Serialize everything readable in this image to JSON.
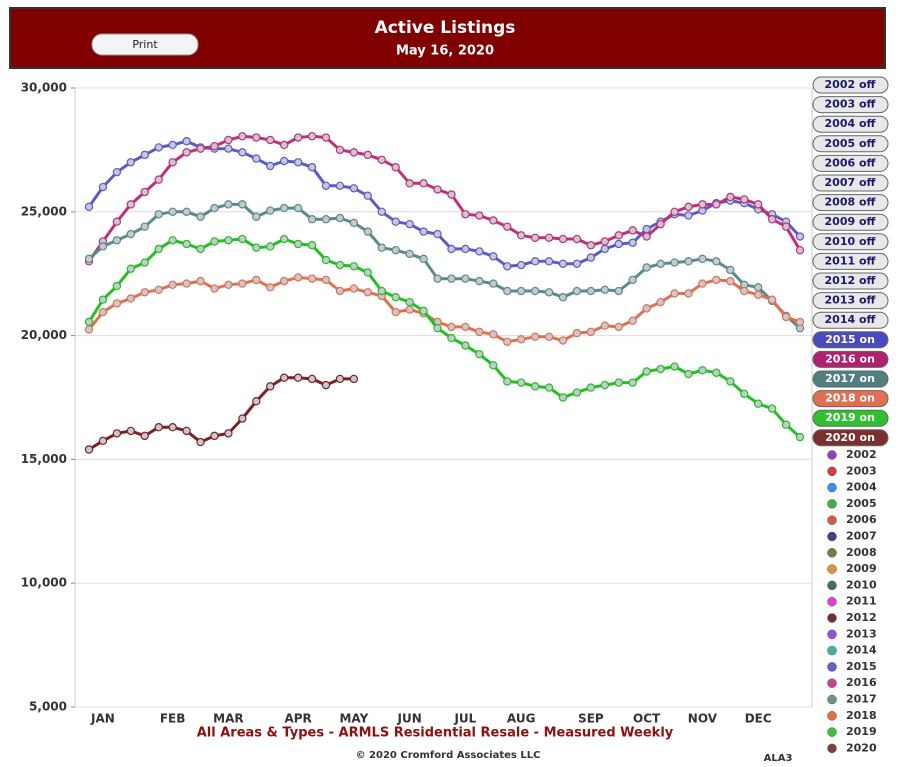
{
  "print_button": "Print",
  "chart_data": {
    "type": "line",
    "title": "Active Listings",
    "subtitle": "May 16, 2020",
    "caption": "All Areas & Types - ARMLS Residential Resale - Measured Weekly",
    "copyright": "© 2020 Cromford Associates LLC",
    "code": "ALA3",
    "grid": true,
    "ylim": [
      5000,
      30000
    ],
    "yticks": [
      {
        "value": 5000,
        "label": "5,000"
      },
      {
        "value": 10000,
        "label": "10,000"
      },
      {
        "value": 15000,
        "label": "15,000"
      },
      {
        "value": 20000,
        "label": "20,000"
      },
      {
        "value": 25000,
        "label": "25,000"
      },
      {
        "value": 30000,
        "label": "30,000"
      }
    ],
    "categories": [
      null,
      "JAN",
      null,
      null,
      null,
      null,
      "FEB",
      null,
      null,
      null,
      "MAR",
      null,
      null,
      null,
      null,
      "APR",
      null,
      null,
      null,
      "MAY",
      null,
      null,
      null,
      "JUN",
      null,
      null,
      null,
      "JUL",
      null,
      null,
      null,
      "AUG",
      null,
      null,
      null,
      null,
      "SEP",
      null,
      null,
      null,
      "OCT",
      null,
      null,
      null,
      "NOV",
      null,
      null,
      null,
      "DEC",
      null,
      null,
      null
    ],
    "series": [
      {
        "name": "2015",
        "color": "#5b5bc8",
        "values": [
          25200,
          26000,
          26600,
          27000,
          27300,
          27600,
          27700,
          27850,
          27600,
          27550,
          27550,
          27400,
          27150,
          26850,
          27050,
          27000,
          26800,
          26050,
          26050,
          25950,
          25650,
          25000,
          24600,
          24500,
          24200,
          24100,
          23500,
          23500,
          23400,
          23200,
          22800,
          22850,
          23000,
          23000,
          22900,
          22900,
          23150,
          23500,
          23700,
          23750,
          24300,
          24600,
          24900,
          24850,
          25050,
          25350,
          25450,
          25350,
          25100,
          24900,
          24600,
          24000
        ]
      },
      {
        "name": "2016",
        "color": "#c0307a",
        "values": [
          23000,
          23800,
          24600,
          25300,
          25800,
          26300,
          27000,
          27400,
          27550,
          27650,
          27900,
          28050,
          28000,
          27900,
          27700,
          28000,
          28050,
          28000,
          27500,
          27400,
          27300,
          27100,
          26800,
          26150,
          26150,
          25900,
          25700,
          24900,
          24850,
          24650,
          24400,
          24050,
          23950,
          23950,
          23900,
          23900,
          23650,
          23800,
          24050,
          24250,
          24000,
          24500,
          25000,
          25200,
          25300,
          25300,
          25600,
          25500,
          25300,
          24700,
          24400,
          23450
        ]
      },
      {
        "name": "2017",
        "color": "#5a8a8a",
        "values": [
          23100,
          23600,
          23850,
          24100,
          24400,
          24900,
          25000,
          25000,
          24800,
          25150,
          25300,
          25300,
          24800,
          25050,
          25150,
          25150,
          24700,
          24700,
          24750,
          24550,
          24200,
          23550,
          23450,
          23300,
          23100,
          22300,
          22300,
          22300,
          22200,
          22100,
          21800,
          21800,
          21800,
          21750,
          21550,
          21800,
          21800,
          21850,
          21800,
          22250,
          22750,
          22900,
          22950,
          23000,
          23100,
          23000,
          22650,
          22050,
          21950,
          21400,
          20800,
          20300
        ]
      },
      {
        "name": "2018",
        "color": "#e07050",
        "values": [
          20250,
          20950,
          21300,
          21500,
          21750,
          21850,
          22050,
          22100,
          22200,
          21900,
          22050,
          22100,
          22250,
          21950,
          22200,
          22350,
          22300,
          22250,
          21800,
          21900,
          21750,
          21600,
          20950,
          21050,
          20900,
          20550,
          20350,
          20350,
          20150,
          20050,
          19750,
          19850,
          19950,
          19950,
          19800,
          20100,
          20150,
          20400,
          20350,
          20600,
          21100,
          21350,
          21700,
          21700,
          22100,
          22250,
          22200,
          21800,
          21650,
          21450,
          20750,
          20550
        ]
      },
      {
        "name": "2019",
        "color": "#22c022",
        "values": [
          20550,
          21450,
          22000,
          22700,
          22950,
          23500,
          23850,
          23700,
          23500,
          23800,
          23850,
          23900,
          23550,
          23600,
          23900,
          23700,
          23650,
          23050,
          22850,
          22800,
          22550,
          21800,
          21550,
          21350,
          21000,
          20300,
          19900,
          19600,
          19250,
          18800,
          18150,
          18100,
          17950,
          17900,
          17500,
          17700,
          17900,
          18000,
          18100,
          18100,
          18550,
          18650,
          18750,
          18450,
          18600,
          18500,
          18150,
          17650,
          17250,
          17050,
          16400,
          15900
        ]
      },
      {
        "name": "2020",
        "color": "#7a2222",
        "values": [
          15400,
          15750,
          16050,
          16150,
          15950,
          16300,
          16300,
          16150,
          15700,
          15950,
          16050,
          16650,
          17350,
          17950,
          18300,
          18300,
          18250,
          18000,
          18250,
          18250,
          null,
          null,
          null,
          null,
          null,
          null,
          null,
          null,
          null,
          null,
          null,
          null,
          null,
          null,
          null,
          null,
          null,
          null,
          null,
          null,
          null,
          null,
          null,
          null,
          null,
          null,
          null,
          null,
          null,
          null,
          null,
          null
        ]
      }
    ],
    "legend_buttons": [
      {
        "label": "2002 off",
        "color": "#e8e8e8"
      },
      {
        "label": "2003 off",
        "color": "#e8e8e8"
      },
      {
        "label": "2004 off",
        "color": "#e8e8e8"
      },
      {
        "label": "2005 off",
        "color": "#e8e8e8"
      },
      {
        "label": "2006 off",
        "color": "#e8e8e8"
      },
      {
        "label": "2007 off",
        "color": "#e8e8e8"
      },
      {
        "label": "2008 off",
        "color": "#e8e8e8"
      },
      {
        "label": "2009 off",
        "color": "#e8e8e8"
      },
      {
        "label": "2010 off",
        "color": "#e8e8e8"
      },
      {
        "label": "2011 off",
        "color": "#e8e8e8"
      },
      {
        "label": "2012 off",
        "color": "#e8e8e8"
      },
      {
        "label": "2013 off",
        "color": "#e8e8e8"
      },
      {
        "label": "2014 off",
        "color": "#e8e8e8"
      },
      {
        "label": "2015 on",
        "color": "#4a4ac0"
      },
      {
        "label": "2016 on",
        "color": "#b02070"
      },
      {
        "label": "2017 on",
        "color": "#4f7f7f"
      },
      {
        "label": "2018 on",
        "color": "#e07050"
      },
      {
        "label": "2019 on",
        "color": "#30c030"
      },
      {
        "label": "2020 on",
        "color": "#7a3030"
      }
    ],
    "year_legend": [
      {
        "name": "2002",
        "color": "#9040c0"
      },
      {
        "name": "2003",
        "color": "#d04040"
      },
      {
        "name": "2004",
        "color": "#4090e0"
      },
      {
        "name": "2005",
        "color": "#40b040"
      },
      {
        "name": "2006",
        "color": "#d06040"
      },
      {
        "name": "2007",
        "color": "#404080"
      },
      {
        "name": "2008",
        "color": "#708040"
      },
      {
        "name": "2009",
        "color": "#e09040"
      },
      {
        "name": "2010",
        "color": "#407060"
      },
      {
        "name": "2011",
        "color": "#e040e0"
      },
      {
        "name": "2012",
        "color": "#703030"
      },
      {
        "name": "2013",
        "color": "#9050e0"
      },
      {
        "name": "2014",
        "color": "#40b0a0"
      },
      {
        "name": "2015",
        "color": "#6060d0"
      },
      {
        "name": "2016",
        "color": "#d04090"
      },
      {
        "name": "2017",
        "color": "#709090"
      },
      {
        "name": "2018",
        "color": "#e07040"
      },
      {
        "name": "2019",
        "color": "#40c040"
      },
      {
        "name": "2020",
        "color": "#804040"
      }
    ]
  }
}
